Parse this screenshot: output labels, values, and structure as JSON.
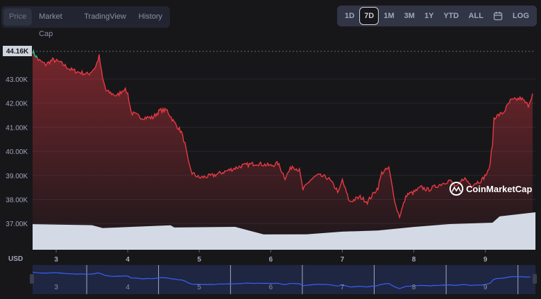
{
  "tabs": [
    {
      "label": "Price",
      "active": true
    },
    {
      "label": "Market Cap"
    },
    {
      "label": "TradingView"
    },
    {
      "label": "History"
    }
  ],
  "ranges": [
    {
      "label": "1D"
    },
    {
      "label": "7D",
      "active": true
    },
    {
      "label": "1M"
    },
    {
      "label": "3M"
    },
    {
      "label": "1Y"
    },
    {
      "label": "YTD"
    },
    {
      "label": "ALL"
    },
    {
      "label": "",
      "icon": "calendar-icon"
    },
    {
      "label": "LOG"
    }
  ],
  "watermark": "CoinMarketCap",
  "currency_label": "USD",
  "current_price_label": "44.16K",
  "colors": {
    "down": "#ea3943",
    "up": "#16c784",
    "volume": "#d3dae6",
    "navigator": "#3861fb"
  },
  "chart_data": {
    "type": "line",
    "ylim": [
      36.2,
      44.6
    ],
    "xlim": [
      2.67,
      9.7
    ],
    "yticks": [
      "37.00K",
      "38.00K",
      "39.00K",
      "40.00K",
      "41.00K",
      "42.00K",
      "43.00K"
    ],
    "ytick_values": [
      37,
      38,
      39,
      40,
      41,
      42,
      43
    ],
    "xticks": [
      "3",
      "4",
      "5",
      "6",
      "7",
      "8",
      "9"
    ],
    "xtick_values": [
      3,
      4,
      5,
      6,
      7,
      8,
      9
    ],
    "grid": true,
    "price_k": [
      [
        2.67,
        44.16
      ],
      [
        2.75,
        43.8
      ],
      [
        2.85,
        43.6
      ],
      [
        2.95,
        43.8
      ],
      [
        3.05,
        43.7
      ],
      [
        3.2,
        43.4
      ],
      [
        3.3,
        43.3
      ],
      [
        3.45,
        43.2
      ],
      [
        3.55,
        43.5
      ],
      [
        3.6,
        43.95
      ],
      [
        3.65,
        43.0
      ],
      [
        3.7,
        42.5
      ],
      [
        3.85,
        42.3
      ],
      [
        3.95,
        42.6
      ],
      [
        4.0,
        42.4
      ],
      [
        4.05,
        41.6
      ],
      [
        4.2,
        41.4
      ],
      [
        4.35,
        41.4
      ],
      [
        4.45,
        41.7
      ],
      [
        4.55,
        41.7
      ],
      [
        4.65,
        41.2
      ],
      [
        4.75,
        40.8
      ],
      [
        4.8,
        40.3
      ],
      [
        4.85,
        39.5
      ],
      [
        4.9,
        39.1
      ],
      [
        5.0,
        38.9
      ],
      [
        5.2,
        39.0
      ],
      [
        5.4,
        39.2
      ],
      [
        5.6,
        39.4
      ],
      [
        5.8,
        39.5
      ],
      [
        6.0,
        39.4
      ],
      [
        6.1,
        39.5
      ],
      [
        6.2,
        38.9
      ],
      [
        6.3,
        39.4
      ],
      [
        6.4,
        39.2
      ],
      [
        6.45,
        38.4
      ],
      [
        6.55,
        38.8
      ],
      [
        6.65,
        39.0
      ],
      [
        6.8,
        38.9
      ],
      [
        6.95,
        38.3
      ],
      [
        7.0,
        38.8
      ],
      [
        7.1,
        37.9
      ],
      [
        7.25,
        38.1
      ],
      [
        7.35,
        37.9
      ],
      [
        7.5,
        38.5
      ],
      [
        7.55,
        39.1
      ],
      [
        7.65,
        39.3
      ],
      [
        7.7,
        38.5
      ],
      [
        7.75,
        37.7
      ],
      [
        7.8,
        37.3
      ],
      [
        7.9,
        38.2
      ],
      [
        8.0,
        38.3
      ],
      [
        8.1,
        38.5
      ],
      [
        8.2,
        38.4
      ],
      [
        8.35,
        38.6
      ],
      [
        8.5,
        38.8
      ],
      [
        8.6,
        38.5
      ],
      [
        8.7,
        38.9
      ],
      [
        8.8,
        38.6
      ],
      [
        8.95,
        38.8
      ],
      [
        9.05,
        39.2
      ],
      [
        9.1,
        40.3
      ],
      [
        9.12,
        41.4
      ],
      [
        9.25,
        41.6
      ],
      [
        9.35,
        42.1
      ],
      [
        9.5,
        42.2
      ],
      [
        9.6,
        41.9
      ],
      [
        9.66,
        42.4
      ]
    ],
    "volume_relative": [
      [
        2.67,
        1.0
      ],
      [
        3.5,
        0.97
      ],
      [
        3.65,
        0.85
      ],
      [
        4.0,
        0.9
      ],
      [
        4.6,
        0.97
      ],
      [
        4.65,
        0.88
      ],
      [
        5.5,
        0.88
      ],
      [
        5.9,
        0.6
      ],
      [
        6.5,
        0.6
      ],
      [
        7.0,
        0.7
      ],
      [
        7.5,
        0.75
      ],
      [
        8.0,
        0.9
      ],
      [
        8.5,
        1.0
      ],
      [
        9.1,
        1.05
      ],
      [
        9.2,
        1.3
      ],
      [
        9.7,
        1.45
      ]
    ]
  }
}
